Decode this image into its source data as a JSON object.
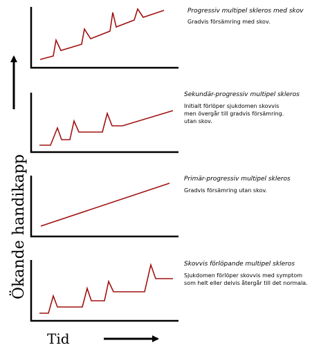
{
  "y_axis_label": "Ökande handikapp",
  "x_axis_label": "Tid",
  "colors": {
    "line": "#a01010",
    "axis": "#000000"
  },
  "panels": [
    {
      "title": "Progressiv multipel skleros med skov",
      "description": [
        "Gradvis försämring med skov."
      ]
    },
    {
      "title": "Sekundär-progressiv multipel skleros",
      "description": [
        "Initialt förlöper sjukdomen skovvis",
        "men övergår till gradvis försämring.",
        "utan skov."
      ]
    },
    {
      "title": "Primär-progressiv multipel skleros",
      "description": [
        "Gradvis försämring utan skov."
      ]
    },
    {
      "title": "Skovvis förlöpande multipel skleros",
      "description": [
        "Sjukdomen förlöper skovvis med symptom",
        "som helt eller delvis återgår till det normala."
      ]
    }
  ]
}
